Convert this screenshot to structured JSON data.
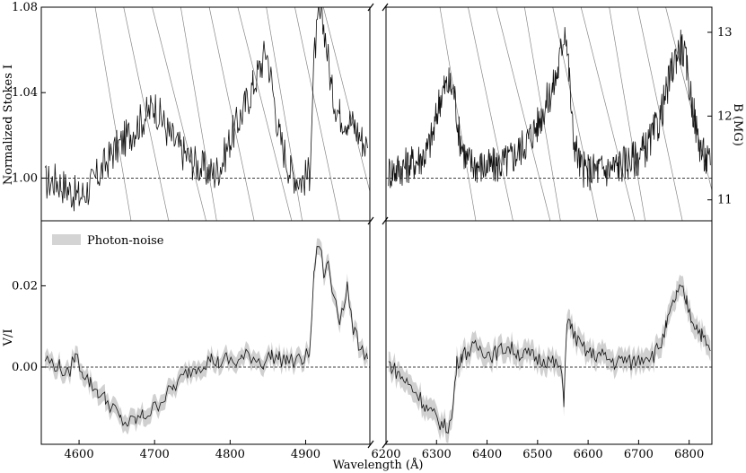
{
  "figure": {
    "xlabel": "Wavelength (Å)",
    "legend_label": "Photon-noise"
  },
  "chart_data": [
    {
      "type": "line",
      "panel": "top-left",
      "ylabel": "Normalized Stokes I",
      "xlim": [
        4550,
        4985
      ],
      "ylim": [
        0.98,
        1.08
      ],
      "yticks": [
        1.0,
        1.04,
        1.08
      ],
      "ytick_labels": [
        "1.00",
        "1.04",
        "1.08"
      ],
      "reference_line": 1.0,
      "series": [
        {
          "x": [
            4555,
            4570,
            4585,
            4600,
            4615,
            4630,
            4645,
            4660,
            4675,
            4690,
            4700,
            4710,
            4720,
            4735,
            4750,
            4765,
            4780,
            4790,
            4800,
            4810,
            4820,
            4830,
            4840,
            4848,
            4855,
            4865,
            4880,
            4895,
            4905,
            4912,
            4918,
            4925,
            4935,
            4945,
            4955,
            4965,
            4975,
            4982
          ],
          "y": [
            0.998,
            0.999,
            0.995,
            0.991,
            0.996,
            1.004,
            1.012,
            1.018,
            1.024,
            1.03,
            1.034,
            1.027,
            1.02,
            1.013,
            1.008,
            1.004,
            1.002,
            1.008,
            1.018,
            1.026,
            1.034,
            1.043,
            1.052,
            1.06,
            1.045,
            1.02,
            1.003,
            0.999,
            1.002,
            1.06,
            1.075,
            1.07,
            1.04,
            1.03,
            1.028,
            1.024,
            1.018,
            1.014
          ]
        }
      ]
    },
    {
      "type": "line",
      "panel": "top-right",
      "ylabel_right": "B (MG)",
      "xlim": [
        6200,
        6845
      ],
      "ylim": [
        0.98,
        1.08
      ],
      "yticks_right": [
        11,
        12,
        13
      ],
      "ytick_labels_right": [
        "11",
        "12",
        "13"
      ],
      "reference_line": 1.0,
      "series": [
        {
          "x": [
            6205,
            6220,
            6240,
            6260,
            6280,
            6295,
            6305,
            6315,
            6325,
            6335,
            6345,
            6360,
            6380,
            6400,
            6420,
            6440,
            6460,
            6480,
            6500,
            6515,
            6530,
            6540,
            6548,
            6555,
            6562,
            6570,
            6585,
            6600,
            6620,
            6640,
            6660,
            6680,
            6700,
            6720,
            6740,
            6755,
            6765,
            6775,
            6785,
            6795,
            6805,
            6815,
            6825,
            6835,
            6842
          ],
          "y": [
            1.003,
            1.004,
            1.006,
            1.008,
            1.012,
            1.022,
            1.036,
            1.042,
            1.044,
            1.04,
            1.02,
            1.008,
            1.006,
            1.005,
            1.006,
            1.008,
            1.012,
            1.018,
            1.025,
            1.034,
            1.042,
            1.05,
            1.062,
            1.072,
            1.05,
            1.02,
            1.005,
            1.003,
            1.004,
            1.004,
            1.006,
            1.008,
            1.01,
            1.016,
            1.026,
            1.04,
            1.05,
            1.058,
            1.062,
            1.052,
            1.036,
            1.022,
            1.012,
            1.008,
            1.006
          ]
        }
      ]
    },
    {
      "type": "line",
      "panel": "bottom-left",
      "ylabel": "V/I",
      "xlim": [
        4550,
        4985
      ],
      "ylim": [
        -0.019,
        0.036
      ],
      "yticks": [
        0.0,
        0.02
      ],
      "ytick_labels": [
        "0.00",
        "0.02"
      ],
      "reference_line": 0.0,
      "error_band": 0.002,
      "series": [
        {
          "x": [
            4555,
            4565,
            4575,
            4585,
            4595,
            4605,
            4615,
            4625,
            4635,
            4645,
            4655,
            4665,
            4675,
            4685,
            4695,
            4705,
            4715,
            4725,
            4735,
            4745,
            4755,
            4765,
            4775,
            4785,
            4795,
            4805,
            4815,
            4825,
            4835,
            4845,
            4855,
            4865,
            4875,
            4885,
            4895,
            4905,
            4912,
            4918,
            4925,
            4930,
            4935,
            4940,
            4945,
            4950,
            4955,
            4960,
            4965,
            4970,
            4975,
            4982
          ],
          "y": [
            0.002,
            0.001,
            0.0,
            -0.002,
            0.003,
            -0.001,
            -0.004,
            -0.006,
            -0.008,
            -0.01,
            -0.013,
            -0.014,
            -0.013,
            -0.012,
            -0.011,
            -0.009,
            -0.007,
            -0.005,
            -0.003,
            -0.001,
            0.0,
            0.001,
            0.002,
            0.001,
            0.002,
            0.001,
            0.002,
            0.003,
            0.002,
            0.001,
            0.003,
            0.002,
            0.002,
            0.001,
            0.002,
            0.003,
            0.025,
            0.031,
            0.022,
            0.026,
            0.019,
            0.017,
            0.012,
            0.015,
            0.02,
            0.012,
            0.008,
            0.006,
            0.005,
            0.002
          ]
        }
      ]
    },
    {
      "type": "line",
      "panel": "bottom-right",
      "xlim": [
        6200,
        6845
      ],
      "ylim": [
        -0.019,
        0.036
      ],
      "reference_line": 0.0,
      "error_band": 0.0025,
      "series": [
        {
          "x": [
            6205,
            6220,
            6235,
            6250,
            6265,
            6280,
            6295,
            6310,
            6320,
            6330,
            6340,
            6350,
            6365,
            6380,
            6395,
            6410,
            6425,
            6440,
            6455,
            6470,
            6485,
            6500,
            6515,
            6530,
            6545,
            6552,
            6558,
            6565,
            6580,
            6595,
            6610,
            6625,
            6640,
            6655,
            6670,
            6685,
            6700,
            6715,
            6730,
            6745,
            6755,
            6765,
            6775,
            6785,
            6795,
            6805,
            6815,
            6825,
            6835,
            6842
          ],
          "y": [
            0.001,
            -0.001,
            -0.003,
            -0.005,
            -0.007,
            -0.01,
            -0.012,
            -0.014,
            -0.015,
            -0.013,
            0.001,
            0.003,
            0.004,
            0.005,
            0.004,
            0.003,
            0.004,
            0.005,
            0.004,
            0.003,
            0.003,
            0.002,
            0.002,
            0.001,
            0.0,
            -0.008,
            0.012,
            0.01,
            0.006,
            0.004,
            0.003,
            0.003,
            0.002,
            0.001,
            0.002,
            0.001,
            0.002,
            0.003,
            0.003,
            0.006,
            0.01,
            0.014,
            0.018,
            0.019,
            0.016,
            0.012,
            0.01,
            0.008,
            0.005,
            0.004
          ]
        }
      ]
    }
  ],
  "xticks_left": [
    4600,
    4700,
    4800,
    4900
  ],
  "xtick_labels_left": [
    "4600",
    "4700",
    "4800",
    "4900"
  ],
  "xticks_right": [
    6200,
    6300,
    6400,
    6500,
    6600,
    6700,
    6800
  ],
  "xtick_labels_right": [
    "6200",
    "6300",
    "6400",
    "6500",
    "6600",
    "6700",
    "6800"
  ]
}
